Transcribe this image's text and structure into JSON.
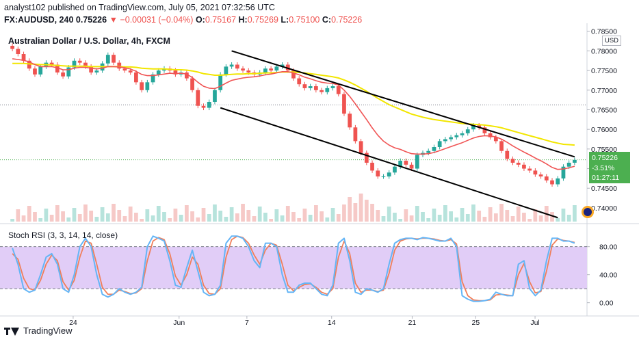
{
  "header": {
    "line1": "analyst102 published on TradingView.com, July 05, 2021 07:32:56 UTC",
    "symbol": "FX:AUDUSD, 240",
    "last": "0.75226",
    "change": "−0.00031 (−0.04%)",
    "o_label": "O:",
    "o_value": "0.75167",
    "h_label": "H:",
    "h_value": "0.75269",
    "l_label": "L:",
    "l_value": "0.75100",
    "c_label": "C:",
    "c_value": "0.75226"
  },
  "colors": {
    "up": "#26a69a",
    "down": "#ef5350",
    "ema_fast": "#f05454",
    "ema_slow": "#f2e600",
    "stoch_k": "#64b5f6",
    "stoch_d": "#f07f5b",
    "rsi_band": "#e1cdf7",
    "trend": "#000000"
  },
  "chart_data": [
    {
      "type": "candlestick",
      "title": "Australian Dollar / U.S. Dollar, 4h, FXCM",
      "currency": "USD",
      "ylim": [
        0.7365,
        0.786
      ],
      "y_ticks": [
        "0.78500",
        "0.78000",
        "0.77500",
        "0.77000",
        "0.76500",
        "0.76000",
        "0.75500",
        "0.75000",
        "0.74500",
        "0.74000"
      ],
      "x_ticks": [
        "24",
        "Jun",
        "7",
        "14",
        "21",
        "25",
        "Jul"
      ],
      "last_price": "0.75226",
      "last_change": "-3.51%",
      "countdown": "01:27:11",
      "path": [
        0.7805,
        0.7792,
        0.7775,
        0.7755,
        0.774,
        0.776,
        0.777,
        0.7765,
        0.7745,
        0.7735,
        0.7758,
        0.7775,
        0.777,
        0.776,
        0.7745,
        0.775,
        0.7768,
        0.779,
        0.777,
        0.7755,
        0.775,
        0.7745,
        0.772,
        0.77,
        0.772,
        0.774,
        0.775,
        0.7755,
        0.775,
        0.774,
        0.7745,
        0.773,
        0.77,
        0.766,
        0.7655,
        0.767,
        0.77,
        0.774,
        0.776,
        0.7765,
        0.7755,
        0.775,
        0.7745,
        0.774,
        0.7745,
        0.7755,
        0.775,
        0.776,
        0.7765,
        0.775,
        0.773,
        0.7715,
        0.7705,
        0.771,
        0.77,
        0.7695,
        0.7705,
        0.771,
        0.769,
        0.764,
        0.7605,
        0.757,
        0.754,
        0.7515,
        0.7495,
        0.748,
        0.748,
        0.749,
        0.7505,
        0.752,
        0.751,
        0.75,
        0.7535,
        0.754,
        0.7545,
        0.7555,
        0.757,
        0.7575,
        0.758,
        0.7585,
        0.759,
        0.76,
        0.761,
        0.7605,
        0.759,
        0.758,
        0.757,
        0.7545,
        0.7525,
        0.7515,
        0.751,
        0.75,
        0.7495,
        0.7485,
        0.748,
        0.747,
        0.746,
        0.7475,
        0.7505,
        0.7515,
        0.7522
      ],
      "ema_fast": [
        0.778,
        0.7778,
        0.7776,
        0.7772,
        0.7765,
        0.776,
        0.776,
        0.776,
        0.7757,
        0.7752,
        0.7752,
        0.7756,
        0.7758,
        0.7758,
        0.7756,
        0.7754,
        0.7756,
        0.776,
        0.776,
        0.7759,
        0.7757,
        0.7754,
        0.7748,
        0.774,
        0.7737,
        0.7737,
        0.7739,
        0.7741,
        0.7743,
        0.7742,
        0.7743,
        0.7741,
        0.7732,
        0.772,
        0.771,
        0.7705,
        0.7704,
        0.771,
        0.7718,
        0.7725,
        0.7728,
        0.7731,
        0.7733,
        0.7734,
        0.7736,
        0.7739,
        0.7741,
        0.7744,
        0.7747,
        0.7747,
        0.7744,
        0.7739,
        0.7733,
        0.7729,
        0.7724,
        0.772,
        0.7718,
        0.7717,
        0.7713,
        0.77,
        0.7684,
        0.7665,
        0.7645,
        0.7625,
        0.7604,
        0.7585,
        0.757,
        0.756,
        0.7553,
        0.7549,
        0.7543,
        0.7538,
        0.7537,
        0.7537,
        0.7538,
        0.7541,
        0.7546,
        0.7551,
        0.7556,
        0.7561,
        0.7566,
        0.7572,
        0.7578,
        0.7582,
        0.7584,
        0.7583,
        0.7581,
        0.7575,
        0.7567,
        0.7558,
        0.755,
        0.7542,
        0.7535,
        0.7527,
        0.752,
        0.7512,
        0.7503,
        0.7498,
        0.7499,
        0.7502,
        0.7506
      ],
      "ema_slow": [
        0.7768,
        0.7768,
        0.7768,
        0.7767,
        0.7766,
        0.7765,
        0.7765,
        0.7764,
        0.7763,
        0.7762,
        0.7761,
        0.7761,
        0.7761,
        0.7761,
        0.776,
        0.776,
        0.776,
        0.776,
        0.776,
        0.776,
        0.7759,
        0.7759,
        0.7758,
        0.7756,
        0.7755,
        0.7754,
        0.7754,
        0.7754,
        0.7753,
        0.7752,
        0.7752,
        0.7751,
        0.7749,
        0.7746,
        0.7742,
        0.774,
        0.7738,
        0.7738,
        0.7739,
        0.774,
        0.7741,
        0.7741,
        0.7742,
        0.7742,
        0.7743,
        0.7744,
        0.7744,
        0.7745,
        0.7746,
        0.7746,
        0.7746,
        0.7745,
        0.7744,
        0.7742,
        0.774,
        0.7738,
        0.7736,
        0.7734,
        0.7731,
        0.7726,
        0.772,
        0.7713,
        0.7705,
        0.7697,
        0.7688,
        0.7679,
        0.7671,
        0.7663,
        0.7657,
        0.7651,
        0.7645,
        0.7639,
        0.7635,
        0.7631,
        0.7628,
        0.7625,
        0.7623,
        0.7621,
        0.7619,
        0.7617,
        0.7615,
        0.7614,
        0.7613,
        0.7612,
        0.7611,
        0.7609,
        0.7607,
        0.7604,
        0.76,
        0.7596,
        0.7592,
        0.7588,
        0.7584,
        0.758,
        0.7576,
        0.7572,
        0.7568,
        0.7565,
        0.7562,
        0.7561,
        0.756
      ],
      "trendlines": [
        {
          "from": {
            "x": 39,
            "price": 0.78
          },
          "to": {
            "x": 100,
            "price": 0.753
          }
        },
        {
          "from": {
            "x": 37,
            "price": 0.7655
          },
          "to": {
            "x": 97,
            "price": 0.7375
          }
        }
      ],
      "horizontal_levels": [
        0.76625,
        0.75226
      ]
    },
    {
      "type": "line",
      "title": "Stoch RSI (3, 3, 14, 14, close)",
      "ylim": [
        -15,
        108
      ],
      "y_ticks": [
        "80.00",
        "40.00",
        "0.00"
      ],
      "band": [
        20,
        80
      ],
      "series": [
        {
          "values": [
            78,
            55,
            20,
            15,
            18,
            40,
            65,
            70,
            55,
            20,
            15,
            40,
            80,
            92,
            80,
            40,
            12,
            8,
            12,
            20,
            15,
            12,
            15,
            22,
            80,
            95,
            92,
            88,
            60,
            25,
            22,
            50,
            75,
            45,
            15,
            10,
            12,
            25,
            85,
            95,
            95,
            92,
            80,
            60,
            50,
            85,
            85,
            80,
            40,
            15,
            15,
            25,
            28,
            28,
            20,
            12,
            10,
            25,
            85,
            92,
            60,
            15,
            12,
            20,
            18,
            15,
            20,
            55,
            85,
            90,
            92,
            92,
            90,
            93,
            92,
            90,
            88,
            88,
            92,
            80,
            10,
            5,
            2,
            2,
            3,
            5,
            15,
            12,
            10,
            10,
            55,
            60,
            20,
            10,
            18,
            60,
            92,
            92,
            88,
            88,
            85
          ]
        },
        {
          "values": [
            70,
            62,
            35,
            20,
            18,
            32,
            55,
            68,
            60,
            30,
            18,
            32,
            65,
            88,
            85,
            55,
            22,
            12,
            12,
            18,
            16,
            13,
            14,
            20,
            60,
            88,
            93,
            90,
            70,
            38,
            25,
            40,
            65,
            55,
            25,
            13,
            12,
            20,
            65,
            90,
            95,
            93,
            85,
            68,
            55,
            75,
            85,
            82,
            55,
            25,
            17,
            22,
            26,
            27,
            22,
            15,
            12,
            20,
            65,
            88,
            70,
            28,
            15,
            18,
            18,
            16,
            18,
            42,
            75,
            88,
            91,
            92,
            91,
            92,
            92,
            91,
            89,
            88,
            90,
            84,
            30,
            10,
            4,
            3,
            3,
            4,
            11,
            12,
            11,
            10,
            40,
            56,
            30,
            14,
            16,
            45,
            82,
            91,
            89,
            88,
            86
          ]
        }
      ]
    }
  ]
}
